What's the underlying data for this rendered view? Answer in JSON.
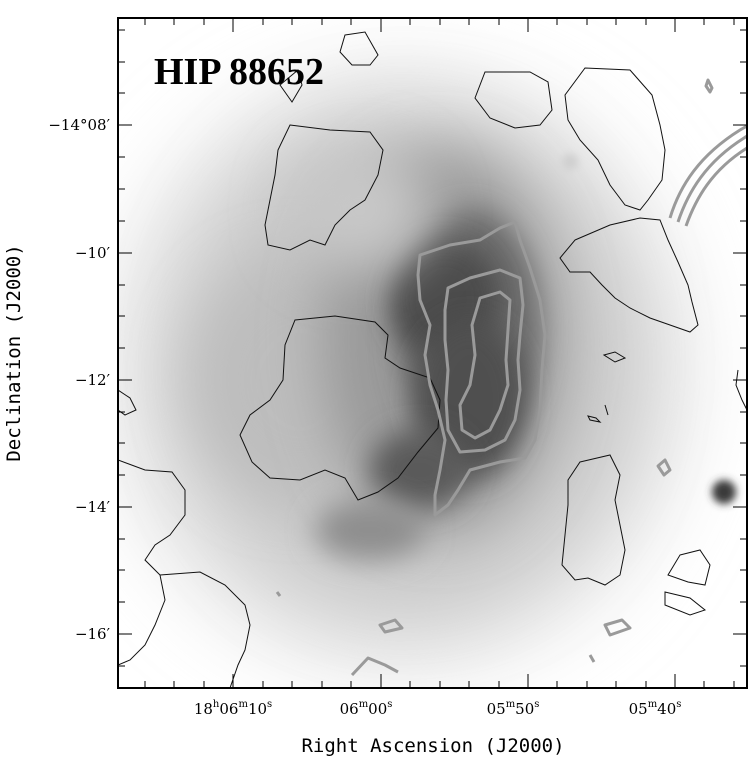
{
  "figure": {
    "object_label": "HIP 88652",
    "x_axis_title": "Right Ascension (J2000)",
    "y_axis_title": "Declination (J2000)",
    "x_ticks": [
      {
        "h": "18",
        "hu": "h",
        "m": "06",
        "mu": "m",
        "s": "10",
        "su": "s"
      },
      {
        "h": "",
        "hu": "",
        "m": "06",
        "mu": "m",
        "s": "00",
        "su": "s"
      },
      {
        "h": "",
        "hu": "",
        "m": "05",
        "mu": "m",
        "s": "50",
        "su": "s"
      },
      {
        "h": "",
        "hu": "",
        "m": "05",
        "mu": "m",
        "s": "40",
        "su": "s"
      }
    ],
    "y_ticks": [
      {
        "label": "−14°08′"
      },
      {
        "label": "−10′"
      },
      {
        "label": "−12′"
      },
      {
        "label": "−14′"
      },
      {
        "label": "−16′"
      }
    ],
    "colors": {
      "frame": "#000000",
      "thin_contour": "#111111",
      "thick_contour": "#9a9a9a",
      "emission_dark": "#3c3c3c",
      "background": "#ffffff"
    }
  }
}
